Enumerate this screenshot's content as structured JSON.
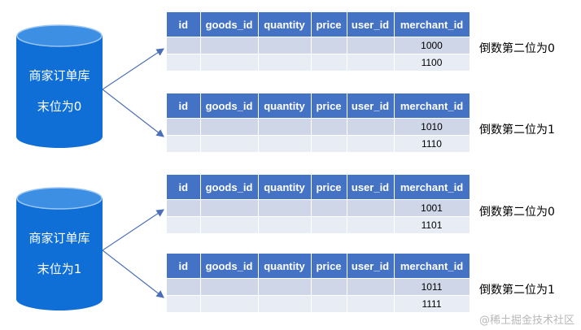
{
  "databases": [
    {
      "line1": "商家订单库",
      "line2": "末位为0"
    },
    {
      "line1": "商家订单库",
      "line2": "末位为1"
    }
  ],
  "columns": [
    "id",
    "goods_id",
    "quantity",
    "price",
    "user_id",
    "merchant_id"
  ],
  "tables": [
    {
      "merchant_ids": [
        "1000",
        "1100"
      ],
      "note": "倒数第二位为0"
    },
    {
      "merchant_ids": [
        "1010",
        "1110"
      ],
      "note": "倒数第二位为1"
    },
    {
      "merchant_ids": [
        "1001",
        "1101"
      ],
      "note": "倒数第二位为0"
    },
    {
      "merchant_ids": [
        "1011",
        "1111"
      ],
      "note": "倒数第二位为1"
    }
  ],
  "watermark": "@稀土掘金技术社区",
  "colors": {
    "header": "#4472c4",
    "db_body": "#0f6fd6",
    "arrow": "#4a6fb8"
  }
}
